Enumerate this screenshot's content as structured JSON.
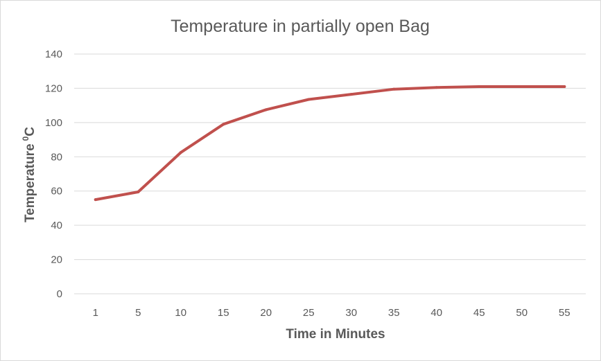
{
  "chart_data": {
    "type": "line",
    "title": "Temperature in partially open Bag",
    "xlabel": "Time in Minutes",
    "ylabel": "Temperature",
    "ylabel_sup": "0",
    "ylabel_unit": "C",
    "categories": [
      "1",
      "5",
      "10",
      "15",
      "20",
      "25",
      "30",
      "35",
      "40",
      "45",
      "50",
      "55"
    ],
    "series": [
      {
        "values": [
          55,
          59.5,
          82.5,
          99,
          107.5,
          113.5,
          116.5,
          119.5,
          120.5,
          121,
          121,
          121
        ],
        "color": "#c0504d"
      }
    ],
    "ylim": [
      0,
      140
    ],
    "yticks": [
      0,
      20,
      40,
      60,
      80,
      100,
      120,
      140
    ],
    "grid": true,
    "legend": "none",
    "gridline_color": "#d9d9d9",
    "text_color": "#595959"
  }
}
